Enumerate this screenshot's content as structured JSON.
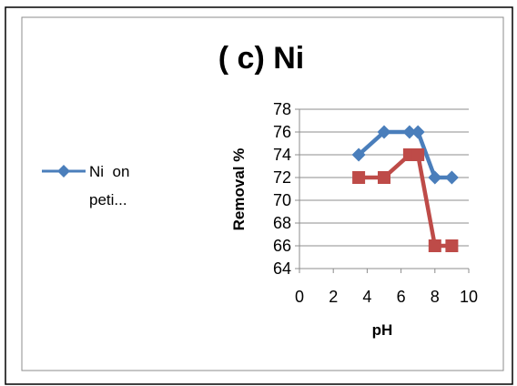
{
  "chart_data": {
    "type": "line",
    "title": "( c) Ni",
    "xlabel": "pH",
    "ylabel": "Removal %",
    "xlim": [
      0,
      10
    ],
    "ylim": [
      64,
      78
    ],
    "x_ticks": [
      "0",
      "2",
      "4",
      "6",
      "8",
      "10"
    ],
    "y_ticks": [
      "64",
      "66",
      "68",
      "70",
      "72",
      "74",
      "76",
      "78"
    ],
    "grid": "horizontal",
    "legend": {
      "placement": "left",
      "entries": [
        {
          "line1": "Ni  on",
          "line2": "peti..."
        }
      ]
    },
    "series": [
      {
        "name": "Ni  on peti...",
        "color": "#4a7ebb",
        "marker": "diamond",
        "x": [
          3.5,
          5,
          6.5,
          7,
          8,
          9
        ],
        "y": [
          74,
          76,
          76,
          76,
          72,
          72
        ]
      },
      {
        "color": "#be4b48",
        "marker": "square",
        "x": [
          3.5,
          5,
          6.5,
          7,
          8,
          9
        ],
        "y": [
          72,
          72,
          74,
          74,
          66,
          66
        ]
      }
    ]
  }
}
